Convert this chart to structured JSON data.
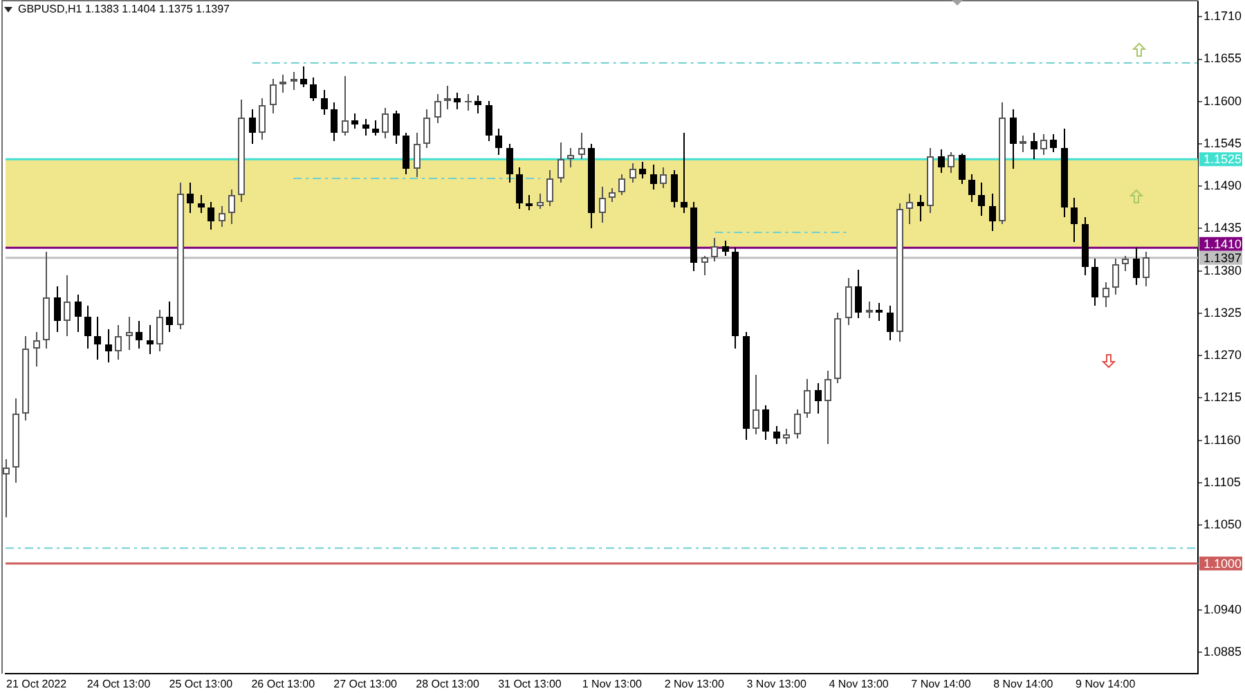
{
  "chart_data": {
    "type": "candlestick",
    "title": "GBPUSD,H1 1.1383 1.1404 1.1375 1.1397",
    "categories": [
      null,
      null,
      null,
      "21 Oct 2022",
      null,
      null,
      null,
      null,
      null,
      null,
      null,
      "24 Oct 13:00",
      null,
      null,
      null,
      null,
      null,
      null,
      null,
      "25 Oct 13:00",
      null,
      null,
      null,
      null,
      null,
      null,
      null,
      "26 Oct 13:00",
      null,
      null,
      null,
      null,
      null,
      null,
      null,
      "27 Oct 13:00",
      null,
      null,
      null,
      null,
      null,
      null,
      null,
      "28 Oct 13:00",
      null,
      null,
      null,
      null,
      null,
      null,
      null,
      "31 Oct 13:00",
      null,
      null,
      null,
      null,
      null,
      null,
      null,
      "1 Nov 13:00",
      null,
      null,
      null,
      null,
      null,
      null,
      null,
      "2 Nov 13:00",
      null,
      null,
      null,
      null,
      null,
      null,
      null,
      "3 Nov 13:00",
      null,
      null,
      null,
      null,
      null,
      null,
      null,
      "4 Nov 13:00",
      null,
      null,
      null,
      null,
      null,
      null,
      null,
      "7 Nov 14:00",
      null,
      null,
      null,
      null,
      null,
      null,
      null,
      "8 Nov 14:00",
      null,
      null,
      null,
      null,
      null,
      null,
      null,
      "9 Nov 14:00",
      null,
      null,
      null,
      null,
      null,
      null,
      null,
      null,
      null
    ],
    "ohlc": [
      [
        1.1115,
        1.1135,
        1.106,
        1.1125
      ],
      [
        1.1125,
        1.1215,
        1.1105,
        1.1195
      ],
      [
        1.1195,
        1.1295,
        1.1185,
        1.128
      ],
      [
        1.128,
        1.13,
        1.1255,
        1.129
      ],
      [
        1.129,
        1.1405,
        1.128,
        1.1345
      ],
      [
        1.1345,
        1.136,
        1.13,
        1.1315
      ],
      [
        1.1315,
        1.1375,
        1.1295,
        1.134
      ],
      [
        1.134,
        1.135,
        1.13,
        1.132
      ],
      [
        1.132,
        1.1335,
        1.128,
        1.1295
      ],
      [
        1.1295,
        1.132,
        1.1265,
        1.1285
      ],
      [
        1.1285,
        1.1305,
        1.1262,
        1.1275
      ],
      [
        1.1275,
        1.131,
        1.1265,
        1.1295
      ],
      [
        1.1295,
        1.132,
        1.1278,
        1.13
      ],
      [
        1.13,
        1.1315,
        1.128,
        1.129
      ],
      [
        1.129,
        1.131,
        1.1272,
        1.1285
      ],
      [
        1.1285,
        1.133,
        1.1275,
        1.132
      ],
      [
        1.132,
        1.134,
        1.13,
        1.131
      ],
      [
        1.131,
        1.1495,
        1.1305,
        1.148
      ],
      [
        1.148,
        1.1495,
        1.1455,
        1.1468
      ],
      [
        1.1468,
        1.1478,
        1.1455,
        1.1462
      ],
      [
        1.1462,
        1.147,
        1.1433,
        1.1445
      ],
      [
        1.1445,
        1.1465,
        1.1438,
        1.1455
      ],
      [
        1.1455,
        1.1485,
        1.144,
        1.1478
      ],
      [
        1.1478,
        1.1602,
        1.147,
        1.158
      ],
      [
        1.158,
        1.159,
        1.1545,
        1.156
      ],
      [
        1.156,
        1.1605,
        1.155,
        1.1595
      ],
      [
        1.1595,
        1.163,
        1.1585,
        1.1622
      ],
      [
        1.1622,
        1.1635,
        1.1612,
        1.1625
      ],
      [
        1.1625,
        1.1638,
        1.1615,
        1.163
      ],
      [
        1.163,
        1.1645,
        1.1618,
        1.1622
      ],
      [
        1.1622,
        1.1632,
        1.16,
        1.1605
      ],
      [
        1.1605,
        1.1615,
        1.1582,
        1.159
      ],
      [
        1.159,
        1.1598,
        1.1548,
        1.156
      ],
      [
        1.156,
        1.1633,
        1.1555,
        1.1575
      ],
      [
        1.1575,
        1.1585,
        1.1565,
        1.157
      ],
      [
        1.157,
        1.1578,
        1.1555,
        1.1565
      ],
      [
        1.1565,
        1.1575,
        1.1555,
        1.156
      ],
      [
        1.156,
        1.1592,
        1.1552,
        1.1585
      ],
      [
        1.1585,
        1.1588,
        1.1545,
        1.1555
      ],
      [
        1.1555,
        1.156,
        1.1505,
        1.1512
      ],
      [
        1.1512,
        1.156,
        1.1502,
        1.1545
      ],
      [
        1.1545,
        1.159,
        1.154,
        1.158
      ],
      [
        1.158,
        1.161,
        1.1572,
        1.16
      ],
      [
        1.16,
        1.162,
        1.159,
        1.1605
      ],
      [
        1.1605,
        1.1612,
        1.159,
        1.1598
      ],
      [
        1.1598,
        1.161,
        1.1588,
        1.16
      ],
      [
        1.16,
        1.1608,
        1.1585,
        1.1595
      ],
      [
        1.1595,
        1.16,
        1.1548,
        1.1555
      ],
      [
        1.1555,
        1.1565,
        1.153,
        1.154
      ],
      [
        1.154,
        1.1545,
        1.1495,
        1.1505
      ],
      [
        1.1505,
        1.1515,
        1.146,
        1.1468
      ],
      [
        1.1468,
        1.1478,
        1.1458,
        1.1465
      ],
      [
        1.1465,
        1.148,
        1.146,
        1.147
      ],
      [
        1.147,
        1.151,
        1.1465,
        1.15
      ],
      [
        1.15,
        1.1547,
        1.1495,
        1.1525
      ],
      [
        1.1525,
        1.154,
        1.1515,
        1.153
      ],
      [
        1.153,
        1.156,
        1.1525,
        1.154
      ],
      [
        1.154,
        1.1545,
        1.1435,
        1.1455
      ],
      [
        1.1455,
        1.149,
        1.1442,
        1.1475
      ],
      [
        1.1475,
        1.1488,
        1.147,
        1.1482
      ],
      [
        1.1482,
        1.1505,
        1.1478,
        1.15
      ],
      [
        1.15,
        1.152,
        1.1495,
        1.1512
      ],
      [
        1.1512,
        1.1522,
        1.15,
        1.1505
      ],
      [
        1.1505,
        1.1518,
        1.1485,
        1.1492
      ],
      [
        1.1492,
        1.1515,
        1.1488,
        1.1505
      ],
      [
        1.1505,
        1.151,
        1.1462,
        1.147
      ],
      [
        1.147,
        1.156,
        1.1455,
        1.1462
      ],
      [
        1.1462,
        1.147,
        1.138,
        1.139
      ],
      [
        1.139,
        1.14,
        1.1375,
        1.1398
      ],
      [
        1.1398,
        1.1423,
        1.1392,
        1.1412
      ],
      [
        1.1412,
        1.142,
        1.14,
        1.1405
      ],
      [
        1.1405,
        1.141,
        1.128,
        1.1295
      ],
      [
        1.1295,
        1.13,
        1.116,
        1.1175
      ],
      [
        1.1175,
        1.1245,
        1.1168,
        1.12
      ],
      [
        1.12,
        1.1205,
        1.116,
        1.1172
      ],
      [
        1.1172,
        1.1178,
        1.1155,
        1.1162
      ],
      [
        1.1162,
        1.1175,
        1.1155,
        1.1168
      ],
      [
        1.1168,
        1.12,
        1.1162,
        1.1195
      ],
      [
        1.1195,
        1.124,
        1.119,
        1.1225
      ],
      [
        1.1225,
        1.1235,
        1.1195,
        1.121
      ],
      [
        1.121,
        1.125,
        1.1155,
        1.124
      ],
      [
        1.124,
        1.1325,
        1.1235,
        1.1318
      ],
      [
        1.1318,
        1.137,
        1.131,
        1.136
      ],
      [
        1.136,
        1.1382,
        1.1318,
        1.1325
      ],
      [
        1.1325,
        1.134,
        1.1318,
        1.133
      ],
      [
        1.133,
        1.1338,
        1.1315,
        1.1325
      ],
      [
        1.1325,
        1.1335,
        1.129,
        1.13
      ],
      [
        1.13,
        1.1468,
        1.1288,
        1.146
      ],
      [
        1.146,
        1.148,
        1.144,
        1.147
      ],
      [
        1.147,
        1.1478,
        1.1445,
        1.1465
      ],
      [
        1.1465,
        1.154,
        1.1455,
        1.1528
      ],
      [
        1.1528,
        1.1538,
        1.1508,
        1.1515
      ],
      [
        1.1515,
        1.1535,
        1.1508,
        1.153
      ],
      [
        1.153,
        1.1533,
        1.1492,
        1.1498
      ],
      [
        1.1498,
        1.1505,
        1.147,
        1.1478
      ],
      [
        1.1478,
        1.1495,
        1.1452,
        1.1465
      ],
      [
        1.1465,
        1.148,
        1.1432,
        1.1445
      ],
      [
        1.1445,
        1.1598,
        1.144,
        1.158
      ],
      [
        1.158,
        1.159,
        1.1513,
        1.1545
      ],
      [
        1.1545,
        1.1555,
        1.1535,
        1.1548
      ],
      [
        1.1548,
        1.156,
        1.1525,
        1.1538
      ],
      [
        1.1538,
        1.1558,
        1.153,
        1.155
      ],
      [
        1.155,
        1.1558,
        1.1535,
        1.154
      ],
      [
        1.154,
        1.1565,
        1.145,
        1.1462
      ],
      [
        1.1462,
        1.1475,
        1.1418,
        1.144
      ],
      [
        1.144,
        1.145,
        1.1375,
        1.1385
      ],
      [
        1.1385,
        1.1395,
        1.1335,
        1.1345
      ],
      [
        1.1345,
        1.1365,
        1.1333,
        1.1358
      ],
      [
        1.1358,
        1.1395,
        1.135,
        1.1388
      ],
      [
        1.1388,
        1.14,
        1.138,
        1.1395
      ],
      [
        1.1395,
        1.141,
        1.1362,
        1.137
      ],
      [
        1.137,
        1.1404,
        1.136,
        1.1397
      ],
      null,
      null,
      null,
      null,
      null
    ],
    "colors": [
      "#555555",
      "#555555",
      "#555555",
      "#555555",
      "#555555",
      "#000000",
      "#555555",
      "#000000",
      "#000000",
      "#000000",
      "#000000",
      "#555555",
      "#555555",
      "#000000",
      "#000000",
      "#555555",
      "#000000",
      "#555555",
      "#000000",
      "#000000",
      "#000000",
      "#555555",
      "#555555",
      "#555555",
      "#000000",
      "#555555",
      "#555555",
      "#555555",
      "#555555",
      "#000000",
      "#000000",
      "#000000",
      "#000000",
      "#555555",
      "#000000",
      "#000000",
      "#000000",
      "#555555",
      "#000000",
      "#000000",
      "#555555",
      "#555555",
      "#555555",
      "#555555",
      "#000000",
      "#555555",
      "#000000",
      "#000000",
      "#000000",
      "#000000",
      "#000000",
      "#000000",
      "#555555",
      "#555555",
      "#555555",
      "#555555",
      "#555555",
      "#000000",
      "#555555",
      "#555555",
      "#555555",
      "#555555",
      "#000000",
      "#000000",
      "#555555",
      "#000000",
      "#000000",
      "#000000",
      "#555555",
      "#555555",
      "#000000",
      "#000000",
      "#000000",
      "#555555",
      "#000000",
      "#000000",
      "#555555",
      "#555555",
      "#555555",
      "#000000",
      "#555555",
      "#555555",
      "#555555",
      "#000000",
      "#555555",
      "#000000",
      "#000000",
      "#555555",
      "#555555",
      "#000000",
      "#555555",
      "#000000",
      "#555555",
      "#000000",
      "#000000",
      "#000000",
      "#000000",
      "#555555",
      "#000000",
      "#555555",
      "#000000",
      "#555555",
      "#000000",
      "#000000",
      "#000000",
      "#000000",
      "#000000",
      "#555555",
      "#555555",
      "#555555",
      "#000000",
      "#555555",
      null,
      null,
      null,
      null,
      null
    ],
    "series": [
      {
        "type": "line",
        "color": "#70d0d0",
        "line_style": "dashed",
        "values": [
          null,
          null,
          null,
          null,
          null,
          null,
          null,
          null,
          null,
          null,
          null,
          null,
          null,
          null,
          null,
          null,
          null,
          null,
          null,
          null,
          null,
          null,
          null,
          null,
          1.165,
          null,
          null,
          null,
          null,
          null,
          null,
          null,
          null,
          null,
          null,
          null,
          null,
          null,
          null,
          null,
          null,
          null,
          null,
          null,
          null,
          null,
          null,
          null,
          null,
          null,
          null,
          null,
          null,
          null,
          null,
          null,
          null,
          null,
          null,
          null,
          null,
          null,
          null,
          null,
          null,
          null,
          null,
          null,
          null,
          null,
          null,
          null,
          null,
          null,
          null,
          null,
          null,
          null,
          null,
          null,
          null,
          null,
          null,
          null,
          null,
          null,
          null,
          null,
          null,
          null,
          null,
          null,
          null,
          null,
          null,
          null,
          null,
          null,
          null,
          null,
          null,
          null,
          null,
          null,
          null,
          null,
          null,
          null,
          null,
          null,
          null,
          null,
          null,
          null,
          null,
          null,
          1.165
        ]
      },
      {
        "type": "line",
        "color": "#70d0d0",
        "line_style": "dashed",
        "values": [
          null,
          null,
          null,
          null,
          null,
          null,
          null,
          null,
          null,
          null,
          null,
          null,
          null,
          null,
          null,
          null,
          null,
          null,
          null,
          null,
          null,
          null,
          null,
          null,
          null,
          null,
          null,
          null,
          1.15,
          null,
          null,
          null,
          null,
          null,
          null,
          null,
          null,
          null,
          null,
          null,
          null,
          null,
          null,
          null,
          null,
          null,
          null,
          null,
          null,
          null,
          null,
          null,
          1.15,
          null,
          null,
          null,
          null,
          null,
          null,
          null,
          null,
          null,
          null,
          null,
          null,
          null,
          null,
          null,
          null,
          null,
          null,
          null,
          null,
          null,
          null,
          null,
          null,
          null,
          null,
          null,
          null,
          null,
          null,
          null,
          null,
          null,
          null,
          null,
          null,
          null,
          null,
          null,
          null,
          null,
          null,
          null,
          null,
          null,
          null,
          null,
          null,
          null,
          null,
          null,
          null,
          null,
          null,
          null,
          null,
          null,
          null,
          null,
          null,
          null,
          null,
          null,
          null
        ]
      },
      {
        "type": "line",
        "color": "#70d0d0",
        "line_style": "dashed",
        "values": [
          null,
          null,
          null,
          null,
          null,
          null,
          null,
          null,
          null,
          null,
          null,
          null,
          null,
          null,
          null,
          null,
          null,
          null,
          null,
          null,
          null,
          null,
          null,
          null,
          null,
          null,
          null,
          null,
          null,
          null,
          null,
          null,
          null,
          null,
          null,
          null,
          null,
          null,
          null,
          null,
          null,
          null,
          null,
          null,
          null,
          null,
          null,
          null,
          null,
          null,
          null,
          null,
          null,
          null,
          null,
          null,
          null,
          null,
          null,
          null,
          null,
          null,
          null,
          null,
          null,
          null,
          null,
          null,
          null,
          1.143,
          null,
          null,
          null,
          null,
          null,
          null,
          null,
          null,
          null,
          null,
          null,
          null,
          1.143,
          null,
          null,
          null,
          null,
          null,
          null,
          null,
          null,
          null,
          null,
          null,
          null,
          null,
          null,
          null,
          null,
          null,
          null,
          null,
          null,
          null,
          null,
          null,
          null,
          null,
          null,
          null,
          null,
          null,
          null,
          null,
          null,
          null,
          null
        ]
      }
    ],
    "ylim": [
      1.0857,
      1.173
    ],
    "yticks": [
      {
        "value": 1.171,
        "label": "1.1710"
      },
      1.1655,
      {
        "value": 1.16,
        "label": "1.1600"
      },
      1.1545,
      {
        "value": 1.149,
        "label": "1.1490"
      },
      1.1435,
      {
        "value": 1.138,
        "label": "1.1380"
      },
      1.1325,
      {
        "value": 1.127,
        "label": "1.1270"
      },
      1.1215,
      {
        "value": 1.116,
        "label": "1.1160"
      },
      1.1105,
      {
        "value": 1.105,
        "label": "1.1050"
      },
      {
        "value": 1.094,
        "label": "1.0940"
      },
      1.0885
    ],
    "ref_lines": [
      {
        "axis": "y",
        "value": 1.1525,
        "label": "1.1525",
        "color": "#40e0d0"
      },
      {
        "axis": "y",
        "value": 1.141,
        "label": "1.1410",
        "color": "#800080"
      },
      {
        "axis": "y",
        "value": 1.1397,
        "label": "1.1397",
        "color": "#c0c0c0"
      },
      {
        "axis": "y",
        "value": 1.1,
        "label": "1.1000",
        "color": "#cd5c5c"
      },
      {
        "axis": "y",
        "value": 1.102,
        "color": "#70d0d0",
        "line_style": "dashed"
      }
    ],
    "bands": [
      {
        "axis": "y",
        "from": 1.141,
        "to": 1.1525,
        "color": "#f0e68c"
      }
    ]
  }
}
